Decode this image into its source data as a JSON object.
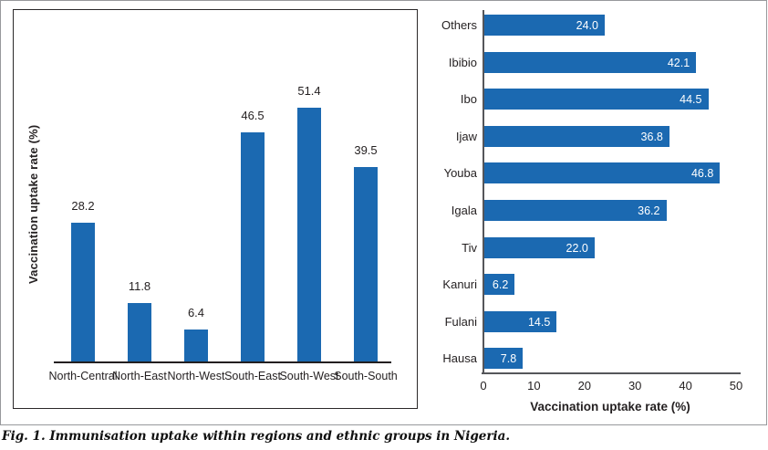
{
  "figure": {
    "caption": "Fig. 1. Immunisation uptake within regions and ethnic groups in Nigeria."
  },
  "colors": {
    "bar_blue": "#1b69b1",
    "text_dark": "#231f20",
    "axis_gray": "#55565a",
    "frame_gray": "#97999c"
  },
  "chart_data": [
    {
      "type": "bar",
      "orientation": "vertical",
      "categories": [
        "North-Central",
        "North-East",
        "North-West",
        "South-East",
        "South-West",
        "South-South"
      ],
      "values": [
        28.2,
        11.8,
        6.4,
        46.5,
        51.4,
        39.5
      ],
      "ylabel": "Vaccination uptake rate (%)",
      "xlabel": "",
      "ylim": [
        0,
        55
      ],
      "grid": false,
      "data_labels": true,
      "data_label_position": "above-bar",
      "axis_ticks_shown": false
    },
    {
      "type": "bar",
      "orientation": "horizontal",
      "categories": [
        "Others",
        "Ibibio",
        "Ibo",
        "Ijaw",
        "Youba",
        "Igala",
        "Tiv",
        "Kanuri",
        "Fulani",
        "Hausa"
      ],
      "values": [
        24.0,
        42.1,
        44.5,
        36.8,
        46.8,
        36.2,
        22.0,
        6.2,
        14.5,
        7.8
      ],
      "xlabel": "Vaccination uptake rate (%)",
      "ylabel": "",
      "xlim": [
        0,
        50
      ],
      "xticks": [
        0,
        10,
        20,
        30,
        40,
        50
      ],
      "grid": false,
      "data_labels": true,
      "data_label_position": "inside-bar-right"
    }
  ]
}
